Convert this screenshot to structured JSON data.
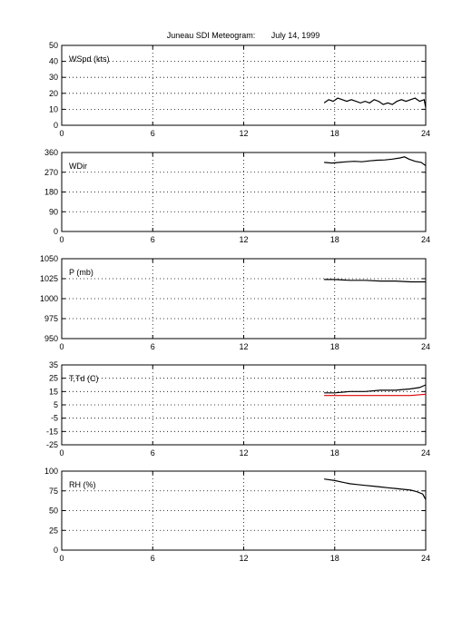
{
  "title": "Juneau SDI Meteogram:       July 14, 1999",
  "chart_data": [
    {
      "type": "line",
      "label": "WSpd (kts)",
      "xlim": [
        0,
        24
      ],
      "ylim": [
        0,
        50
      ],
      "xticks": [
        0,
        6,
        12,
        18,
        24
      ],
      "yticks": [
        0,
        10,
        20,
        30,
        40,
        50
      ],
      "grid": true,
      "series": [
        {
          "color": "#000000",
          "x": [
            17.3,
            17.6,
            17.9,
            18.2,
            18.5,
            18.8,
            19.1,
            19.4,
            19.7,
            20.0,
            20.3,
            20.6,
            20.9,
            21.2,
            21.5,
            21.8,
            22.1,
            22.4,
            22.7,
            23.0,
            23.3,
            23.6,
            23.9,
            24.0
          ],
          "y": [
            14,
            16,
            15,
            17,
            16,
            15,
            16,
            15,
            14,
            15,
            14,
            16,
            15,
            13,
            14,
            13,
            15,
            16,
            15,
            16,
            17,
            15,
            16,
            11
          ]
        }
      ]
    },
    {
      "type": "line",
      "label": "WDir",
      "xlim": [
        0,
        24
      ],
      "ylim": [
        0,
        360
      ],
      "xticks": [
        0,
        6,
        12,
        18,
        24
      ],
      "yticks": [
        0,
        90,
        180,
        270,
        360
      ],
      "grid": true,
      "series": [
        {
          "color": "#000000",
          "x": [
            17.3,
            17.8,
            18.3,
            18.8,
            19.3,
            19.8,
            20.3,
            20.8,
            21.3,
            21.8,
            22.3,
            22.6,
            22.9,
            23.3,
            23.7,
            24.0
          ],
          "y": [
            315,
            312,
            315,
            318,
            320,
            318,
            322,
            325,
            326,
            330,
            335,
            340,
            330,
            320,
            315,
            300
          ]
        }
      ]
    },
    {
      "type": "line",
      "label": "P (mb)",
      "xlim": [
        0,
        24
      ],
      "ylim": [
        950,
        1050
      ],
      "xticks": [
        0,
        6,
        12,
        18,
        24
      ],
      "yticks": [
        950,
        975,
        1000,
        1025,
        1050
      ],
      "grid": true,
      "series": [
        {
          "color": "#000000",
          "x": [
            17.3,
            18.0,
            19.0,
            20.0,
            21.0,
            22.0,
            23.0,
            24.0
          ],
          "y": [
            1024,
            1024,
            1023,
            1023,
            1022,
            1022,
            1021,
            1021
          ]
        }
      ]
    },
    {
      "type": "line",
      "label": "T,Td (C)",
      "xlim": [
        0,
        24
      ],
      "ylim": [
        -25,
        35
      ],
      "xticks": [
        0,
        6,
        12,
        18,
        24
      ],
      "yticks": [
        -25,
        -15,
        -5,
        5,
        15,
        25,
        35
      ],
      "grid": true,
      "series": [
        {
          "color": "#000000",
          "x": [
            17.3,
            18.0,
            19.0,
            20.0,
            21.0,
            22.0,
            23.0,
            23.6,
            24.0
          ],
          "y": [
            14,
            14,
            15,
            15,
            16,
            16,
            17,
            18,
            20
          ]
        },
        {
          "color": "#e00000",
          "x": [
            17.3,
            18.0,
            19.0,
            20.0,
            21.0,
            22.0,
            23.0,
            24.0
          ],
          "y": [
            12,
            12,
            12,
            12,
            12,
            12,
            12,
            13
          ]
        }
      ]
    },
    {
      "type": "line",
      "label": "RH (%)",
      "xlim": [
        0,
        24
      ],
      "ylim": [
        0,
        100
      ],
      "xticks": [
        0,
        6,
        12,
        18,
        24
      ],
      "yticks": [
        0,
        25,
        50,
        75,
        100
      ],
      "grid": true,
      "series": [
        {
          "color": "#000000",
          "x": [
            17.3,
            18.0,
            18.5,
            19.0,
            19.5,
            20.0,
            20.5,
            21.0,
            21.5,
            22.0,
            22.5,
            23.0,
            23.4,
            23.8,
            24.0
          ],
          "y": [
            90,
            88,
            86,
            84,
            83,
            82,
            81,
            80,
            79,
            78,
            77,
            76,
            74,
            71,
            64
          ]
        }
      ]
    }
  ]
}
